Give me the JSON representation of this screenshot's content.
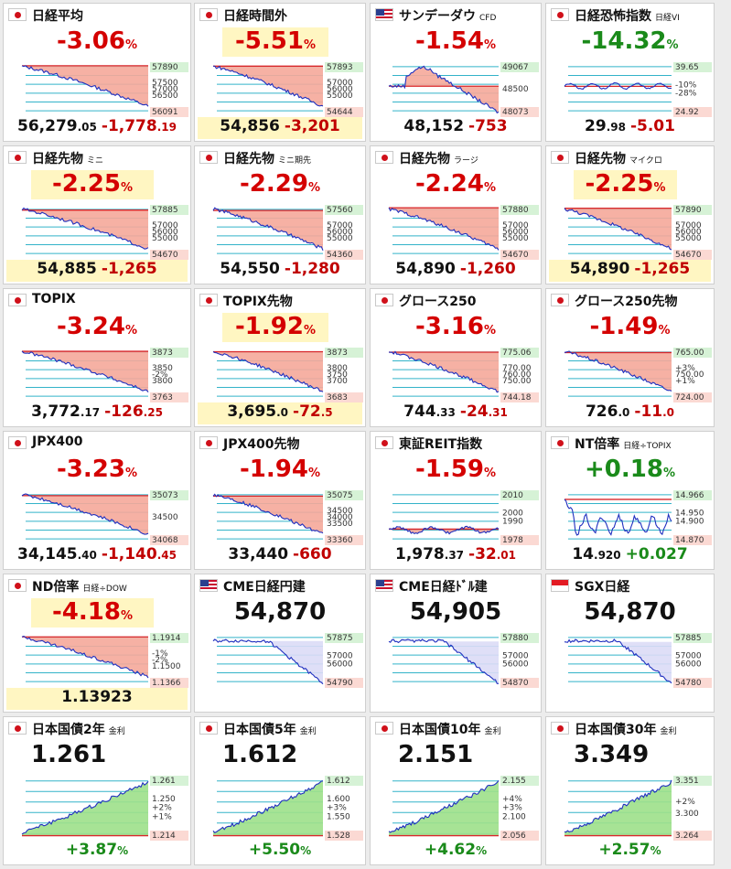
{
  "colors": {
    "down_fill": "#f5a89a",
    "up_fill": "#9de08a",
    "line": "#1f2fbf",
    "ref_line": "#d8262a",
    "grid": "#33b3c9",
    "neg_text": "#d40000",
    "pos_text": "#1a8a1a",
    "highlight": "#fff6c2",
    "cme_fill": "#dcdcf6"
  },
  "panels": [
    {
      "title": "日経平均",
      "sub": "",
      "flag": "jp",
      "pct": "-3.06",
      "sign": "neg",
      "price": "56,279",
      "price_dec": ".05",
      "change": "-1,778",
      "change_dec": ".19",
      "top_label": "57890",
      "mid_labels": [
        "57500",
        "57000",
        "56500"
      ],
      "bot_label": "56091",
      "trend": "down",
      "yellow": false
    },
    {
      "title": "日経時間外",
      "sub": "",
      "flag": "jp",
      "pct": "-5.51",
      "sign": "neg",
      "price": "54,856",
      "price_dec": "",
      "change": "-3,201",
      "change_dec": "",
      "top_label": "57893",
      "mid_labels": [
        "57000",
        "56000",
        "55000"
      ],
      "bot_label": "54644",
      "trend": "down",
      "yellow": true
    },
    {
      "title": "サンデーダウ",
      "sub": "CFD",
      "flag": "us",
      "pct": "-1.54",
      "sign": "neg",
      "price": "48,152",
      "price_dec": "",
      "change": "-753",
      "change_dec": "",
      "top_label": "49067",
      "mid_labels": [
        "48500"
      ],
      "bot_label": "48073",
      "trend": "hump",
      "yellow": false
    },
    {
      "title": "日経恐怖指数",
      "sub": "日経VI",
      "flag": "jp",
      "pct": "-14.32",
      "sign": "pos",
      "price": "29",
      "price_dec": ".98",
      "change": "-5.01",
      "change_dec": "",
      "top_label": "39.65",
      "mid_labels": [
        "-10%",
        "-28%"
      ],
      "bot_label": "24.92",
      "trend": "vi",
      "yellow": false
    },
    {
      "title": "日経先物",
      "sub": "ミニ",
      "flag": "jp",
      "pct": "-2.25",
      "sign": "neg",
      "price": "54,885",
      "price_dec": "",
      "change": "-1,265",
      "change_dec": "",
      "top_label": "57885",
      "mid_labels": [
        "57000",
        "56000",
        "55000"
      ],
      "bot_label": "54670",
      "trend": "down",
      "yellow": true
    },
    {
      "title": "日経先物",
      "sub": "ミニ期先",
      "flag": "jp",
      "pct": "-2.29",
      "sign": "neg",
      "price": "54,550",
      "price_dec": "",
      "change": "-1,280",
      "change_dec": "",
      "top_label": "57560",
      "mid_labels": [
        "57000",
        "56000",
        "55000"
      ],
      "bot_label": "54360",
      "trend": "down",
      "yellow": false
    },
    {
      "title": "日経先物",
      "sub": "ラージ",
      "flag": "jp",
      "pct": "-2.24",
      "sign": "neg",
      "price": "54,890",
      "price_dec": "",
      "change": "-1,260",
      "change_dec": "",
      "top_label": "57880",
      "mid_labels": [
        "57000",
        "56000",
        "55000"
      ],
      "bot_label": "54670",
      "trend": "down",
      "yellow": false
    },
    {
      "title": "日経先物",
      "sub": "マイクロ",
      "flag": "jp",
      "pct": "-2.25",
      "sign": "neg",
      "price": "54,890",
      "price_dec": "",
      "change": "-1,265",
      "change_dec": "",
      "top_label": "57890",
      "mid_labels": [
        "57000",
        "56000",
        "55000"
      ],
      "bot_label": "54670",
      "trend": "down",
      "yellow": true
    },
    {
      "title": "TOPIX",
      "sub": "",
      "flag": "jp",
      "pct": "-3.24",
      "sign": "neg",
      "price": "3,772",
      "price_dec": ".17",
      "change": "-126",
      "change_dec": ".25",
      "top_label": "3873",
      "mid_labels": [
        "3850",
        "-2%",
        "3800"
      ],
      "bot_label": "3763",
      "trend": "down",
      "yellow": false
    },
    {
      "title": "TOPIX先物",
      "sub": "",
      "flag": "jp",
      "pct": "-1.92",
      "sign": "neg",
      "price": "3,695",
      "price_dec": ".0",
      "change": "-72",
      "change_dec": ".5",
      "top_label": "3873",
      "mid_labels": [
        "3800",
        "3750",
        "3700"
      ],
      "bot_label": "3683",
      "trend": "down",
      "yellow": true
    },
    {
      "title": "グロース250",
      "sub": "",
      "flag": "jp",
      "pct": "-3.16",
      "sign": "neg",
      "price": "744",
      "price_dec": ".33",
      "change": "-24",
      "change_dec": ".31",
      "top_label": "775.06",
      "mid_labels": [
        "770.00",
        "760.00",
        "750.00"
      ],
      "bot_label": "744.18",
      "trend": "down",
      "yellow": false
    },
    {
      "title": "グロース250先物",
      "sub": "",
      "flag": "jp",
      "pct": "-1.49",
      "sign": "neg",
      "price": "726",
      "price_dec": ".0",
      "change": "-11",
      "change_dec": ".0",
      "top_label": "765.00",
      "mid_labels": [
        "+3%",
        "750.00",
        "+1%"
      ],
      "bot_label": "724.00",
      "trend": "down",
      "yellow": false
    },
    {
      "title": "JPX400",
      "sub": "",
      "flag": "jp",
      "pct": "-3.23",
      "sign": "neg",
      "price": "34,145",
      "price_dec": ".40",
      "change": "-1,140",
      "change_dec": ".45",
      "top_label": "35073",
      "mid_labels": [
        "34500"
      ],
      "bot_label": "34068",
      "trend": "down",
      "yellow": false
    },
    {
      "title": "JPX400先物",
      "sub": "",
      "flag": "jp",
      "pct": "-1.94",
      "sign": "neg",
      "price": "33,440",
      "price_dec": "",
      "change": "-660",
      "change_dec": "",
      "top_label": "35075",
      "mid_labels": [
        "34500",
        "34000",
        "33500"
      ],
      "bot_label": "33360",
      "trend": "down",
      "yellow": false
    },
    {
      "title": "東証REIT指数",
      "sub": "",
      "flag": "jp",
      "pct": "-1.59",
      "sign": "neg",
      "price": "1,978",
      "price_dec": ".37",
      "change": "-32",
      "change_dec": ".01",
      "top_label": "2010",
      "mid_labels": [
        "2000",
        "1990"
      ],
      "bot_label": "1978",
      "trend": "flat",
      "yellow": false
    },
    {
      "title": "NT倍率",
      "sub": "日経÷TOPIX",
      "flag": "jp",
      "pct": "+0.18",
      "sign": "pos",
      "price": "14",
      "price_dec": ".920",
      "change": "+0.027",
      "change_dec": "",
      "top_label": "14.966",
      "mid_labels": [
        "14.950",
        "14.900"
      ],
      "bot_label": "14.870",
      "trend": "nt",
      "yellow": false
    },
    {
      "title": "ND倍率",
      "sub": "日経÷DOW",
      "flag": "jp",
      "pct": "-4.18",
      "sign": "neg",
      "price": "1.13923",
      "price_dec": "",
      "change": "",
      "change_dec": "",
      "top_label": "1.1914",
      "mid_labels": [
        "-1%",
        "-2%",
        "1.1500"
      ],
      "bot_label": "1.1366",
      "trend": "down",
      "yellow": true
    },
    {
      "title": "CME日経円建",
      "sub": "",
      "flag": "us",
      "big": "54,870",
      "top_label": "57875",
      "mid_labels": [
        "57000",
        "56000"
      ],
      "bot_label": "54790",
      "trend": "cme"
    },
    {
      "title": "CME日経ﾄﾞﾙ建",
      "sub": "",
      "flag": "us",
      "big": "54,905",
      "top_label": "57880",
      "mid_labels": [
        "57000",
        "56000"
      ],
      "bot_label": "54870",
      "trend": "cme"
    },
    {
      "title": "SGX日経",
      "sub": "",
      "flag": "sg",
      "big": "54,870",
      "top_label": "57885",
      "mid_labels": [
        "57000",
        "56000"
      ],
      "bot_label": "54780",
      "trend": "cme"
    },
    {
      "title": "日本国債2年",
      "sub": "金利",
      "flag": "jp",
      "big": "1.261",
      "top_label": "1.261",
      "mid_labels": [
        "1.250",
        "+2%",
        "+1%"
      ],
      "bot_label": "1.214",
      "pct": "+3.87",
      "trend": "up"
    },
    {
      "title": "日本国債5年",
      "sub": "金利",
      "flag": "jp",
      "big": "1.612",
      "top_label": "1.612",
      "mid_labels": [
        "1.600",
        "+3%",
        "1.550"
      ],
      "bot_label": "1.528",
      "pct": "+5.50",
      "trend": "up"
    },
    {
      "title": "日本国債10年",
      "sub": "金利",
      "flag": "jp",
      "big": "2.151",
      "top_label": "2.155",
      "mid_labels": [
        "+4%",
        "+3%",
        "2.100"
      ],
      "bot_label": "2.056",
      "pct": "+4.62",
      "trend": "up"
    },
    {
      "title": "日本国債30年",
      "sub": "金利",
      "flag": "jp",
      "big": "3.349",
      "top_label": "3.351",
      "mid_labels": [
        "+2%",
        "3.300"
      ],
      "bot_label": "3.264",
      "pct": "+2.57",
      "trend": "up"
    }
  ]
}
